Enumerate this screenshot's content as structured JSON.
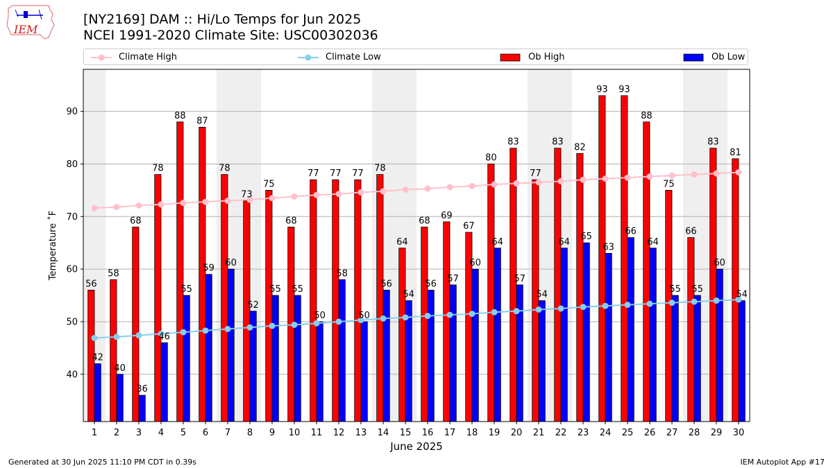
{
  "header": {
    "logo_text": "IEM",
    "title_line1": "[NY2169] DAM :: Hi/Lo Temps for Jun 2025",
    "title_line2": "NCEI 1991-2020 Climate Site: USC00302036"
  },
  "legend": {
    "placement": "top",
    "items": [
      {
        "label": "Climate High",
        "color": "#ffc0cb",
        "kind": "line-marker"
      },
      {
        "label": "Climate Low",
        "color": "#87ceeb",
        "kind": "line-marker"
      },
      {
        "label": "Ob High",
        "color": "#ff0000",
        "kind": "bar"
      },
      {
        "label": "Ob Low",
        "color": "#0000ff",
        "kind": "bar"
      }
    ]
  },
  "footer": {
    "left": "Generated at 30 Jun 2025 11:10 PM CDT in 0.39s",
    "right": "IEM Autoplot App #17"
  },
  "chart_data": {
    "type": "bar",
    "xlabel": "June 2025",
    "ylabel": "Temperature ˚F",
    "ylim": [
      31,
      98
    ],
    "yticks": [
      40,
      50,
      60,
      70,
      80,
      90
    ],
    "grid": "horizontal",
    "weekend_shading_color": "#efefef",
    "categories": [
      "1",
      "2",
      "3",
      "4",
      "5",
      "6",
      "7",
      "8",
      "9",
      "10",
      "11",
      "12",
      "13",
      "14",
      "15",
      "16",
      "17",
      "18",
      "19",
      "20",
      "21",
      "22",
      "23",
      "24",
      "25",
      "26",
      "27",
      "28",
      "29",
      "30"
    ],
    "weekend_days": [
      1,
      7,
      8,
      14,
      15,
      21,
      22,
      28,
      29
    ],
    "series": [
      {
        "name": "Ob High",
        "type": "bar",
        "color": "#ff0000",
        "values": [
          56,
          58,
          68,
          78,
          88,
          87,
          78,
          73,
          75,
          68,
          77,
          77,
          77,
          78,
          64,
          68,
          69,
          67,
          80,
          83,
          77,
          83,
          82,
          93,
          93,
          88,
          75,
          66,
          83,
          81
        ]
      },
      {
        "name": "Ob Low",
        "type": "bar",
        "color": "#0000ff",
        "values": [
          42,
          40,
          36,
          46,
          55,
          59,
          60,
          52,
          55,
          55,
          50,
          58,
          50,
          56,
          54,
          56,
          57,
          60,
          64,
          57,
          54,
          64,
          65,
          63,
          66,
          64,
          55,
          55,
          60,
          54
        ]
      },
      {
        "name": "Climate High",
        "type": "line",
        "color": "#ffc0cb",
        "values": [
          71.6,
          71.8,
          72.1,
          72.3,
          72.6,
          72.8,
          73.0,
          73.2,
          73.5,
          73.8,
          74.1,
          74.3,
          74.6,
          74.8,
          75.1,
          75.3,
          75.6,
          75.8,
          76.1,
          76.3,
          76.5,
          76.7,
          77.0,
          77.2,
          77.4,
          77.6,
          77.8,
          78.0,
          78.2,
          78.4
        ]
      },
      {
        "name": "Climate Low",
        "type": "line",
        "color": "#87ceeb",
        "values": [
          46.9,
          47.1,
          47.4,
          47.7,
          48.0,
          48.3,
          48.6,
          48.9,
          49.2,
          49.4,
          49.7,
          50.0,
          50.3,
          50.6,
          50.8,
          51.1,
          51.3,
          51.5,
          51.8,
          52.0,
          52.3,
          52.5,
          52.8,
          53.0,
          53.2,
          53.4,
          53.6,
          53.8,
          54.0,
          54.2
        ]
      }
    ]
  }
}
